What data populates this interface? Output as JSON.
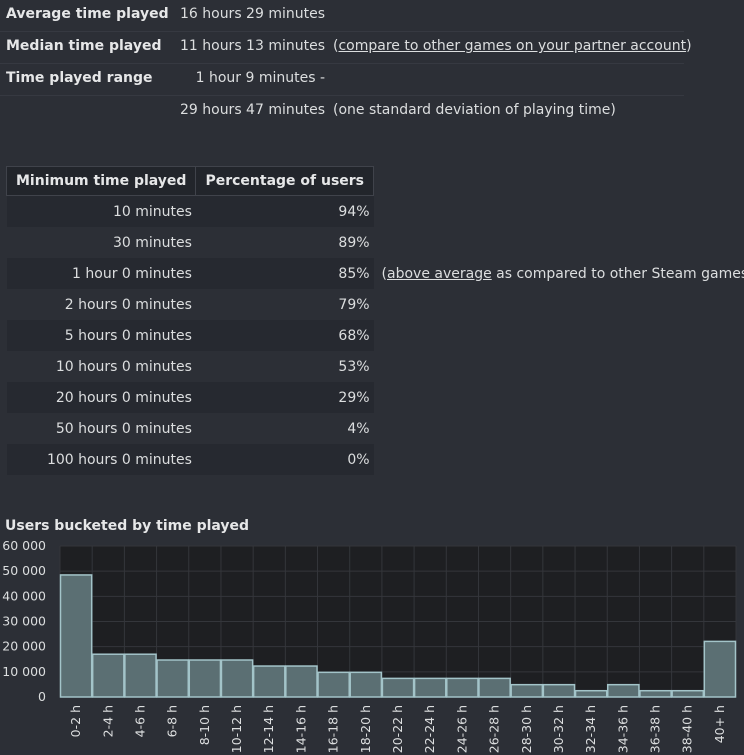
{
  "summary": [
    {
      "label": "Average time played",
      "value": "16 hours 29 minutes",
      "note": "",
      "note_link": "",
      "note_suffix": ""
    },
    {
      "label": "Median time played",
      "value": "11 hours 13 minutes",
      "note": "(",
      "note_link": "compare to other games on your partner account",
      "note_suffix": ")"
    },
    {
      "label": "Time played range",
      "value": "1 hour 9 minutes -",
      "note": "",
      "note_link": "",
      "note_suffix": ""
    },
    {
      "label": "",
      "value": "29 hours 47 minutes",
      "note": "(one standard deviation of playing time)",
      "note_link": "",
      "note_suffix": ""
    }
  ],
  "table": {
    "headers": [
      "Minimum time played",
      "Percentage of users"
    ],
    "rows": [
      {
        "min": "10 minutes",
        "pct": "94%",
        "note_pre": "",
        "note_link": "",
        "note_post": ""
      },
      {
        "min": "30 minutes",
        "pct": "89%",
        "note_pre": "",
        "note_link": "",
        "note_post": ""
      },
      {
        "min": "1 hour 0 minutes",
        "pct": "85%",
        "note_pre": "(",
        "note_link": "above average",
        "note_post": " as compared to other Steam games)"
      },
      {
        "min": "2 hours 0 minutes",
        "pct": "79%",
        "note_pre": "",
        "note_link": "",
        "note_post": ""
      },
      {
        "min": "5 hours 0 minutes",
        "pct": "68%",
        "note_pre": "",
        "note_link": "",
        "note_post": ""
      },
      {
        "min": "10 hours 0 minutes",
        "pct": "53%",
        "note_pre": "",
        "note_link": "",
        "note_post": ""
      },
      {
        "min": "20 hours 0 minutes",
        "pct": "29%",
        "note_pre": "",
        "note_link": "",
        "note_post": ""
      },
      {
        "min": "50 hours 0 minutes",
        "pct": "4%",
        "note_pre": "",
        "note_link": "",
        "note_post": ""
      },
      {
        "min": "100 hours 0 minutes",
        "pct": "0%",
        "note_pre": "",
        "note_link": "",
        "note_post": ""
      }
    ]
  },
  "chart_data": {
    "type": "bar",
    "title": "Users bucketed by time played",
    "xlabel": "",
    "ylabel": "",
    "ylim": [
      0,
      60000
    ],
    "yticks": [
      0,
      10000,
      20000,
      30000,
      40000,
      50000,
      60000
    ],
    "ytick_labels": [
      "0",
      "10 000",
      "20 000",
      "30 000",
      "40 000",
      "50 000",
      "60 000"
    ],
    "categories": [
      "0-2 h",
      "2-4 h",
      "4-6 h",
      "6-8 h",
      "8-10 h",
      "10-12 h",
      "12-14 h",
      "14-16 h",
      "16-18 h",
      "18-20 h",
      "20-22 h",
      "22-24 h",
      "24-26 h",
      "26-28 h",
      "28-30 h",
      "30-32 h",
      "32-34 h",
      "34-36 h",
      "36-38 h",
      "38-40 h",
      "40+ h"
    ],
    "values": [
      48500,
      17000,
      17000,
      14700,
      14700,
      14700,
      12300,
      12300,
      9800,
      9800,
      7400,
      7400,
      7400,
      7400,
      4900,
      4900,
      2500,
      4900,
      2500,
      2500,
      22100
    ],
    "colors": {
      "bar_fill": "#5b6f73",
      "bar_stroke": "#a3c4c9",
      "plot_bg": "#1e1f22",
      "grid": "#34363b"
    }
  }
}
